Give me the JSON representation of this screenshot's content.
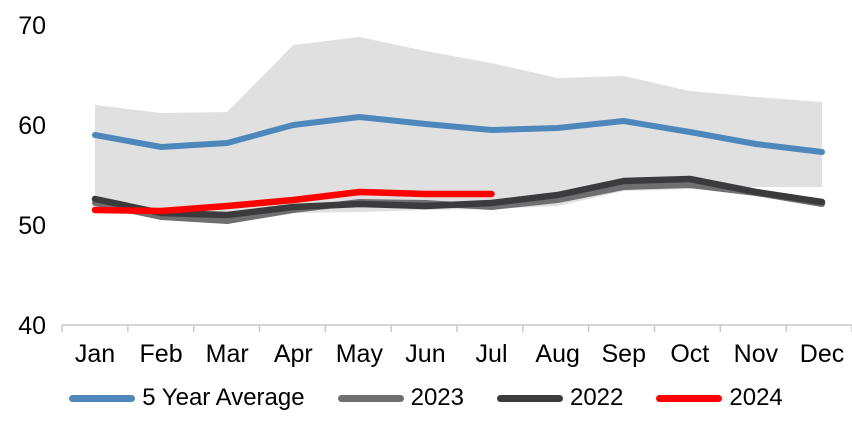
{
  "chart_data": {
    "type": "line",
    "title": "",
    "xlabel": "",
    "ylabel": "",
    "categories": [
      "Jan",
      "Feb",
      "Mar",
      "Apr",
      "May",
      "Jun",
      "Jul",
      "Aug",
      "Sep",
      "Oct",
      "Nov",
      "Dec"
    ],
    "y_axis": {
      "ticks": [
        70,
        60,
        50,
        40
      ],
      "range": [
        40,
        70
      ],
      "grid": false
    },
    "band": {
      "name": "5-year-range-band",
      "color": "#E0E0E0",
      "upper": [
        62.0,
        61.2,
        61.3,
        68.0,
        68.8,
        67.4,
        66.2,
        64.7,
        64.9,
        63.4,
        62.8,
        62.3
      ],
      "lower": [
        52.0,
        51.2,
        50.7,
        51.2,
        51.3,
        51.5,
        51.6,
        51.9,
        53.4,
        53.6,
        53.8,
        53.8
      ]
    },
    "series": [
      {
        "name": "5 Year Average",
        "color": "#4E87BC",
        "width": 6,
        "values": [
          59.0,
          57.8,
          58.2,
          60.0,
          60.8,
          60.1,
          59.5,
          59.7,
          60.4,
          59.3,
          58.1,
          57.3
        ]
      },
      {
        "name": "2023",
        "color": "#6F6F72",
        "width": 6,
        "values": [
          52.2,
          50.8,
          50.4,
          51.5,
          52.3,
          52.2,
          51.8,
          52.5,
          53.8,
          54.0,
          53.2,
          52.1
        ]
      },
      {
        "name": "2022",
        "color": "#3B3B3E",
        "width": 6.5,
        "values": [
          52.6,
          51.2,
          51.0,
          51.8,
          52.1,
          51.9,
          52.2,
          53.0,
          54.4,
          54.6,
          53.3,
          52.3
        ]
      },
      {
        "name": "2024",
        "color": "#FF0000",
        "width": 6.5,
        "values": [
          51.5,
          51.4,
          51.9,
          52.5,
          53.3,
          53.1,
          53.1,
          null,
          null,
          null,
          null,
          null
        ]
      }
    ],
    "legend_position": "bottom",
    "axis_color": "#C9C9C9",
    "label_color": "#000000"
  }
}
